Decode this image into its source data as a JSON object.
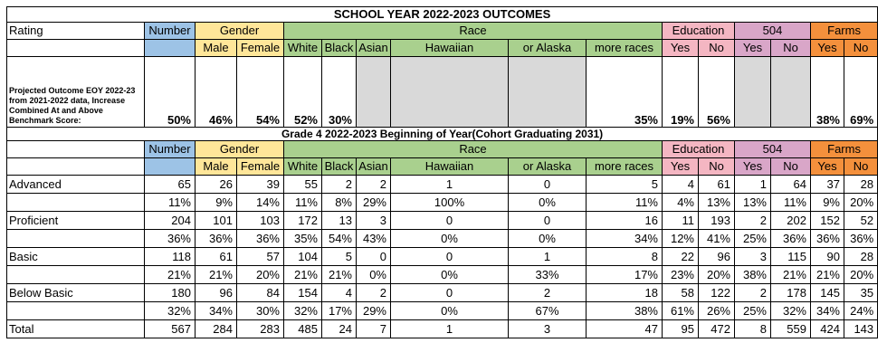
{
  "title": "SCHOOL YEAR 2022-2023 OUTCOMES",
  "subtitle": "Grade 4 2022-2023 Beginning of Year(Cohort Graduating 2031)",
  "header_top": {
    "rating": "Rating",
    "number": "Number",
    "gender": "Gender",
    "race": "Race",
    "education": "Education",
    "s504": "504",
    "farms": "Farms"
  },
  "header_sub": {
    "male": "Male",
    "female": "Female",
    "white": "White",
    "black": "Black",
    "asian": "Asian",
    "hawaiian": "Hawaiian",
    "alaska": "or Alaska",
    "more_races": "more races",
    "edu_yes": "Yes",
    "edu_no": "No",
    "s504_yes": "Yes",
    "s504_no": "No",
    "farms_yes": "Yes",
    "farms_no": "No"
  },
  "projection": {
    "label": "Projected Outcome EOY 2022-23 from 2021-2022 data, Increase Combined At and Above Benchmark Score:",
    "values": [
      "50%",
      "46%",
      "54%",
      "52%",
      "30%",
      "",
      "",
      "",
      "35%",
      "19%",
      "56%",
      "",
      "",
      "38%",
      "69%"
    ]
  },
  "rows": [
    {
      "label": "Advanced",
      "values": [
        "65",
        "26",
        "39",
        "55",
        "2",
        "2",
        "1",
        "0",
        "5",
        "4",
        "61",
        "1",
        "64",
        "37",
        "28"
      ]
    },
    {
      "label": "",
      "values": [
        "11%",
        "9%",
        "14%",
        "11%",
        "8%",
        "29%",
        "100%",
        "0%",
        "11%",
        "4%",
        "13%",
        "13%",
        "11%",
        "9%",
        "20%"
      ]
    },
    {
      "label": "Proficient",
      "values": [
        "204",
        "101",
        "103",
        "172",
        "13",
        "3",
        "0",
        "0",
        "16",
        "11",
        "193",
        "2",
        "202",
        "152",
        "52"
      ]
    },
    {
      "label": "",
      "values": [
        "36%",
        "36%",
        "36%",
        "35%",
        "54%",
        "43%",
        "0%",
        "0%",
        "34%",
        "12%",
        "41%",
        "25%",
        "36%",
        "36%",
        "36%"
      ]
    },
    {
      "label": "Basic",
      "values": [
        "118",
        "61",
        "57",
        "104",
        "5",
        "0",
        "0",
        "1",
        "8",
        "22",
        "96",
        "3",
        "115",
        "90",
        "28"
      ]
    },
    {
      "label": "",
      "values": [
        "21%",
        "21%",
        "20%",
        "21%",
        "21%",
        "0%",
        "0%",
        "33%",
        "17%",
        "23%",
        "20%",
        "38%",
        "21%",
        "21%",
        "20%"
      ]
    },
    {
      "label": "Below Basic",
      "values": [
        "180",
        "96",
        "84",
        "154",
        "4",
        "2",
        "0",
        "2",
        "18",
        "58",
        "122",
        "2",
        "178",
        "145",
        "35"
      ]
    },
    {
      "label": "",
      "values": [
        "32%",
        "34%",
        "30%",
        "32%",
        "17%",
        "29%",
        "0%",
        "67%",
        "38%",
        "61%",
        "26%",
        "25%",
        "32%",
        "34%",
        "24%"
      ]
    },
    {
      "label": "Total",
      "values": [
        "567",
        "284",
        "283",
        "485",
        "24",
        "7",
        "1",
        "3",
        "47",
        "95",
        "472",
        "8",
        "559",
        "424",
        "143"
      ]
    }
  ],
  "colors": {
    "number": "#9dc3e6",
    "gender": "#ffe699",
    "race": "#a9d08e",
    "education": "#f4b6c2",
    "s504": "#d9a6c8",
    "farms": "#f4903c",
    "blank": "#d9d9d9"
  }
}
